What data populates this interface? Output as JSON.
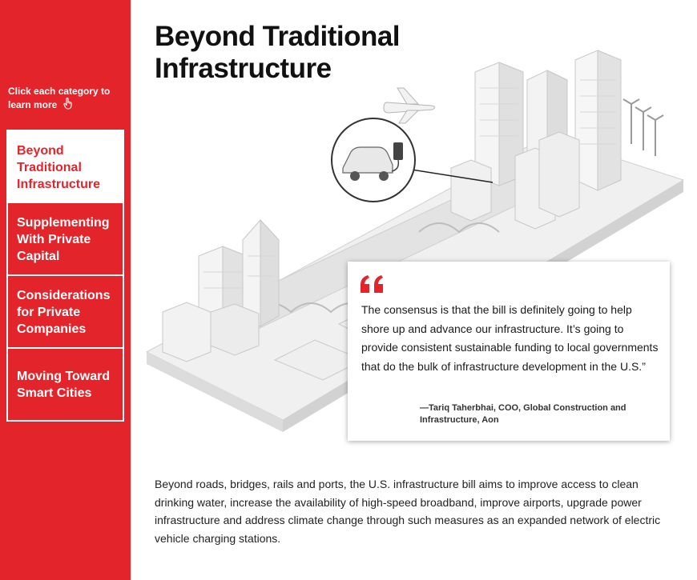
{
  "sidebar": {
    "hint": "Click each category to learn more",
    "items": [
      {
        "label": "Beyond Traditional Infrastructure"
      },
      {
        "label": "Supplementing With Private Capital"
      },
      {
        "label": "Considerations for Private Companies"
      },
      {
        "label": "Moving Toward Smart Cities"
      }
    ],
    "active_index": 0
  },
  "page": {
    "title": "Beyond Traditional Infrastructure"
  },
  "quote": {
    "text": "The consensus is that the bill is definitely going to help shore up and advance our infrastructure. It’s going to provide consistent sustainable funding to local governments that do the bulk of infrastructure development in the U.S.”",
    "attribution": "—Tariq Taherbhai, COO, Global Construction and Infrastructure, Aon"
  },
  "body": {
    "text": "Beyond roads, bridges, rails and ports, the U.S. infrastructure bill aims to improve access to clean drinking water, increase the availability of high-speed broadband, improve airports, upgrade power infrastructure and address climate change through such measures as an expanded network of electric vehicle charging stations."
  },
  "colors": {
    "accent": "#e3242b",
    "text": "#1a1a1a",
    "illustration": "#e6e6e6"
  },
  "icons": {
    "hint": "hand-pointer-icon",
    "quote": "quotation-mark-icon"
  }
}
